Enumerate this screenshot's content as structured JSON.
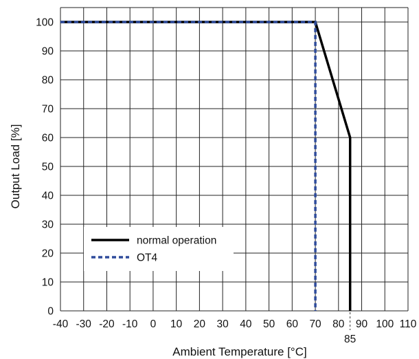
{
  "chart_data": {
    "type": "line",
    "xlabel": "Ambient Temperature [°C]",
    "ylabel": "Output Load [%]",
    "xlim": [
      -40,
      110
    ],
    "ylim": [
      0,
      105
    ],
    "x_ticks": [
      -40,
      -30,
      -20,
      -10,
      0,
      10,
      20,
      30,
      40,
      50,
      60,
      70,
      80,
      90,
      100,
      110
    ],
    "y_ticks": [
      0,
      10,
      20,
      30,
      40,
      50,
      60,
      70,
      80,
      90,
      100
    ],
    "extra_x_tick": {
      "value": 85,
      "label": "85"
    },
    "grid": true,
    "legend_position": "lower-left",
    "series": [
      {
        "name": "normal operation",
        "color": "#000000",
        "style": "solid",
        "points": [
          [
            -40,
            100
          ],
          [
            70,
            100
          ],
          [
            85,
            60
          ],
          [
            85,
            0
          ]
        ]
      },
      {
        "name": "OT4",
        "color": "#2e4b9b",
        "style": "dashed",
        "points": [
          [
            -40,
            100
          ],
          [
            70,
            100
          ],
          [
            70,
            0
          ]
        ]
      }
    ]
  }
}
